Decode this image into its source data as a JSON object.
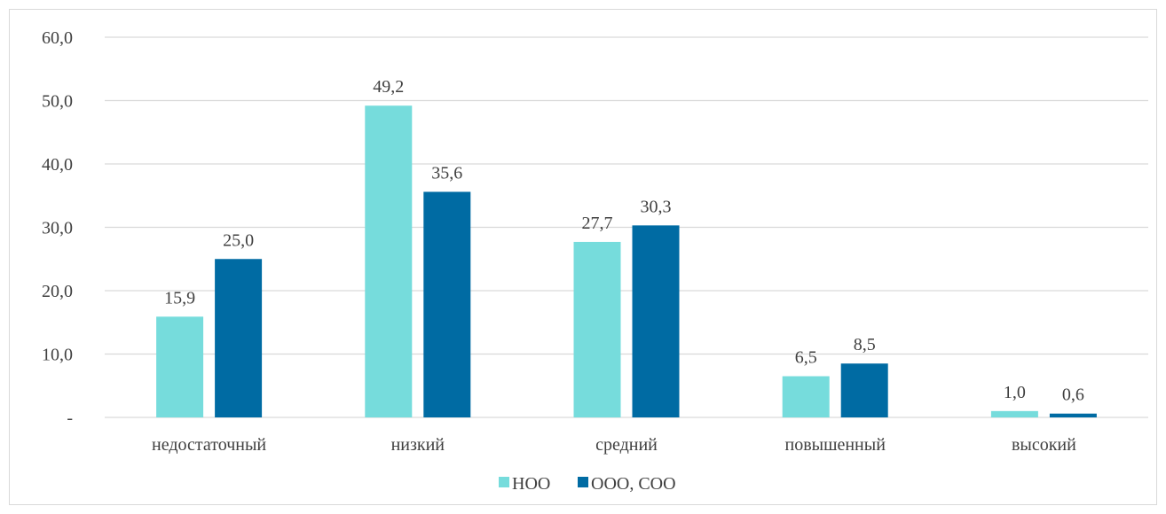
{
  "chart_data": {
    "type": "bar",
    "categories": [
      "недостаточный",
      "низкий",
      "средний",
      "повышенный",
      "высокий"
    ],
    "series": [
      {
        "name": "НОО",
        "values": [
          15.9,
          49.2,
          27.7,
          6.5,
          1.0
        ],
        "labels": [
          "15,9",
          "49,2",
          "27,7",
          "6,5",
          "1,0"
        ],
        "color": "#76dcdc"
      },
      {
        "name": "ООО, СОО",
        "values": [
          25.0,
          35.6,
          30.3,
          8.5,
          0.6
        ],
        "labels": [
          "25,0",
          "35,6",
          "30,3",
          "8,5",
          "0,6"
        ],
        "color": "#006ba3"
      }
    ],
    "ylim": [
      0,
      60
    ],
    "yticks": [
      0,
      10,
      20,
      30,
      40,
      50,
      60
    ],
    "ytick_labels": [
      "-",
      "10,0",
      "20,0",
      "30,0",
      "40,0",
      "50,0",
      "60,0"
    ],
    "grid": true,
    "legend": "bottom",
    "title": "",
    "xlabel": "",
    "ylabel": ""
  },
  "colors": {
    "gridline": "#d9d9d9",
    "text": "#404040"
  }
}
